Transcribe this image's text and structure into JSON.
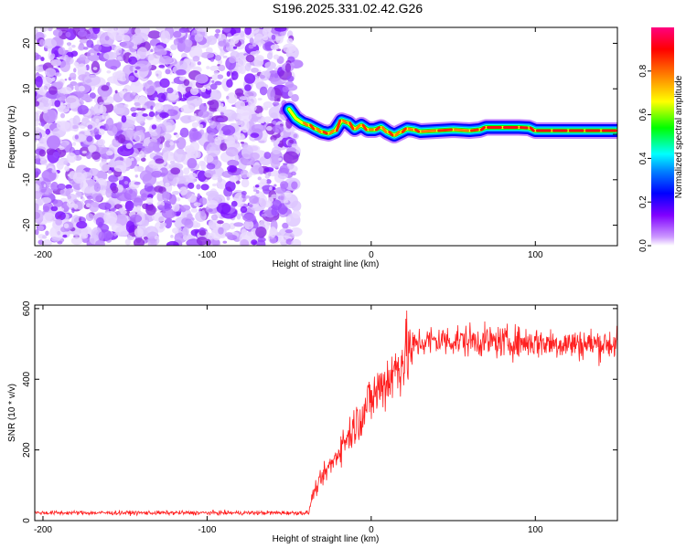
{
  "title": "S196.2025.331.02.42.G26",
  "chart_data": [
    {
      "type": "heatmap",
      "name": "spectrogram",
      "xlabel": "Height of straight line (km)",
      "ylabel": "Frequency (Hz)",
      "xlim": [
        -205,
        150
      ],
      "ylim": [
        -24.5,
        23.5
      ],
      "xticks": [
        -200,
        -100,
        0,
        100
      ],
      "yticks": [
        -20,
        -10,
        0,
        10,
        20
      ],
      "noise_region_x": [
        -205,
        -50
      ],
      "signal_ridge": {
        "x": [
          -50,
          -46,
          -42,
          -38,
          -34,
          -30,
          -26,
          -22,
          -18,
          -14,
          -10,
          -6,
          -2,
          2,
          6,
          10,
          14,
          18,
          22,
          26,
          30,
          40,
          50,
          60,
          66,
          70,
          80,
          90,
          96,
          100,
          110,
          120,
          130,
          140,
          150
        ],
        "freq_hz": [
          5.5,
          3.5,
          2.5,
          2.0,
          1.2,
          0.5,
          0.2,
          0.8,
          3.0,
          2.5,
          1.2,
          2.0,
          1.0,
          1.0,
          1.5,
          0.5,
          -0.2,
          0.5,
          1.2,
          1.0,
          0.6,
          0.8,
          1.0,
          0.8,
          1.0,
          1.5,
          1.5,
          1.5,
          1.4,
          0.8,
          0.8,
          0.8,
          0.8,
          0.8,
          0.8
        ]
      },
      "colorbar": {
        "label": "Normalized spectral amplitude",
        "range": [
          0,
          1
        ],
        "ticks": [
          "0.0",
          "0.2",
          "0.4",
          "0.6",
          "0.8"
        ]
      }
    },
    {
      "type": "line",
      "name": "snr",
      "xlabel": "Height of straight line (km)",
      "ylabel": "SNR (10 * v/v)",
      "xlim": [
        -205,
        150
      ],
      "ylim": [
        0,
        610
      ],
      "xticks": [
        -200,
        -100,
        0,
        100
      ],
      "yticks": [
        0,
        200,
        400,
        600
      ],
      "color": "#ff2020",
      "series": [
        {
          "name": "SNR",
          "x": [
            -205,
            -150,
            -100,
            -50,
            -38,
            -36,
            -30,
            -26,
            -22,
            -18,
            -14,
            -10,
            -6,
            -2,
            2,
            6,
            10,
            14,
            18,
            22,
            26,
            30,
            40,
            60,
            80,
            100,
            120,
            140,
            150
          ],
          "values": [
            22,
            22,
            22,
            22,
            22,
            70,
            120,
            150,
            175,
            215,
            240,
            270,
            300,
            330,
            355,
            380,
            400,
            420,
            450,
            475,
            495,
            505,
            510,
            510,
            505,
            505,
            500,
            500,
            500
          ]
        }
      ]
    }
  ]
}
